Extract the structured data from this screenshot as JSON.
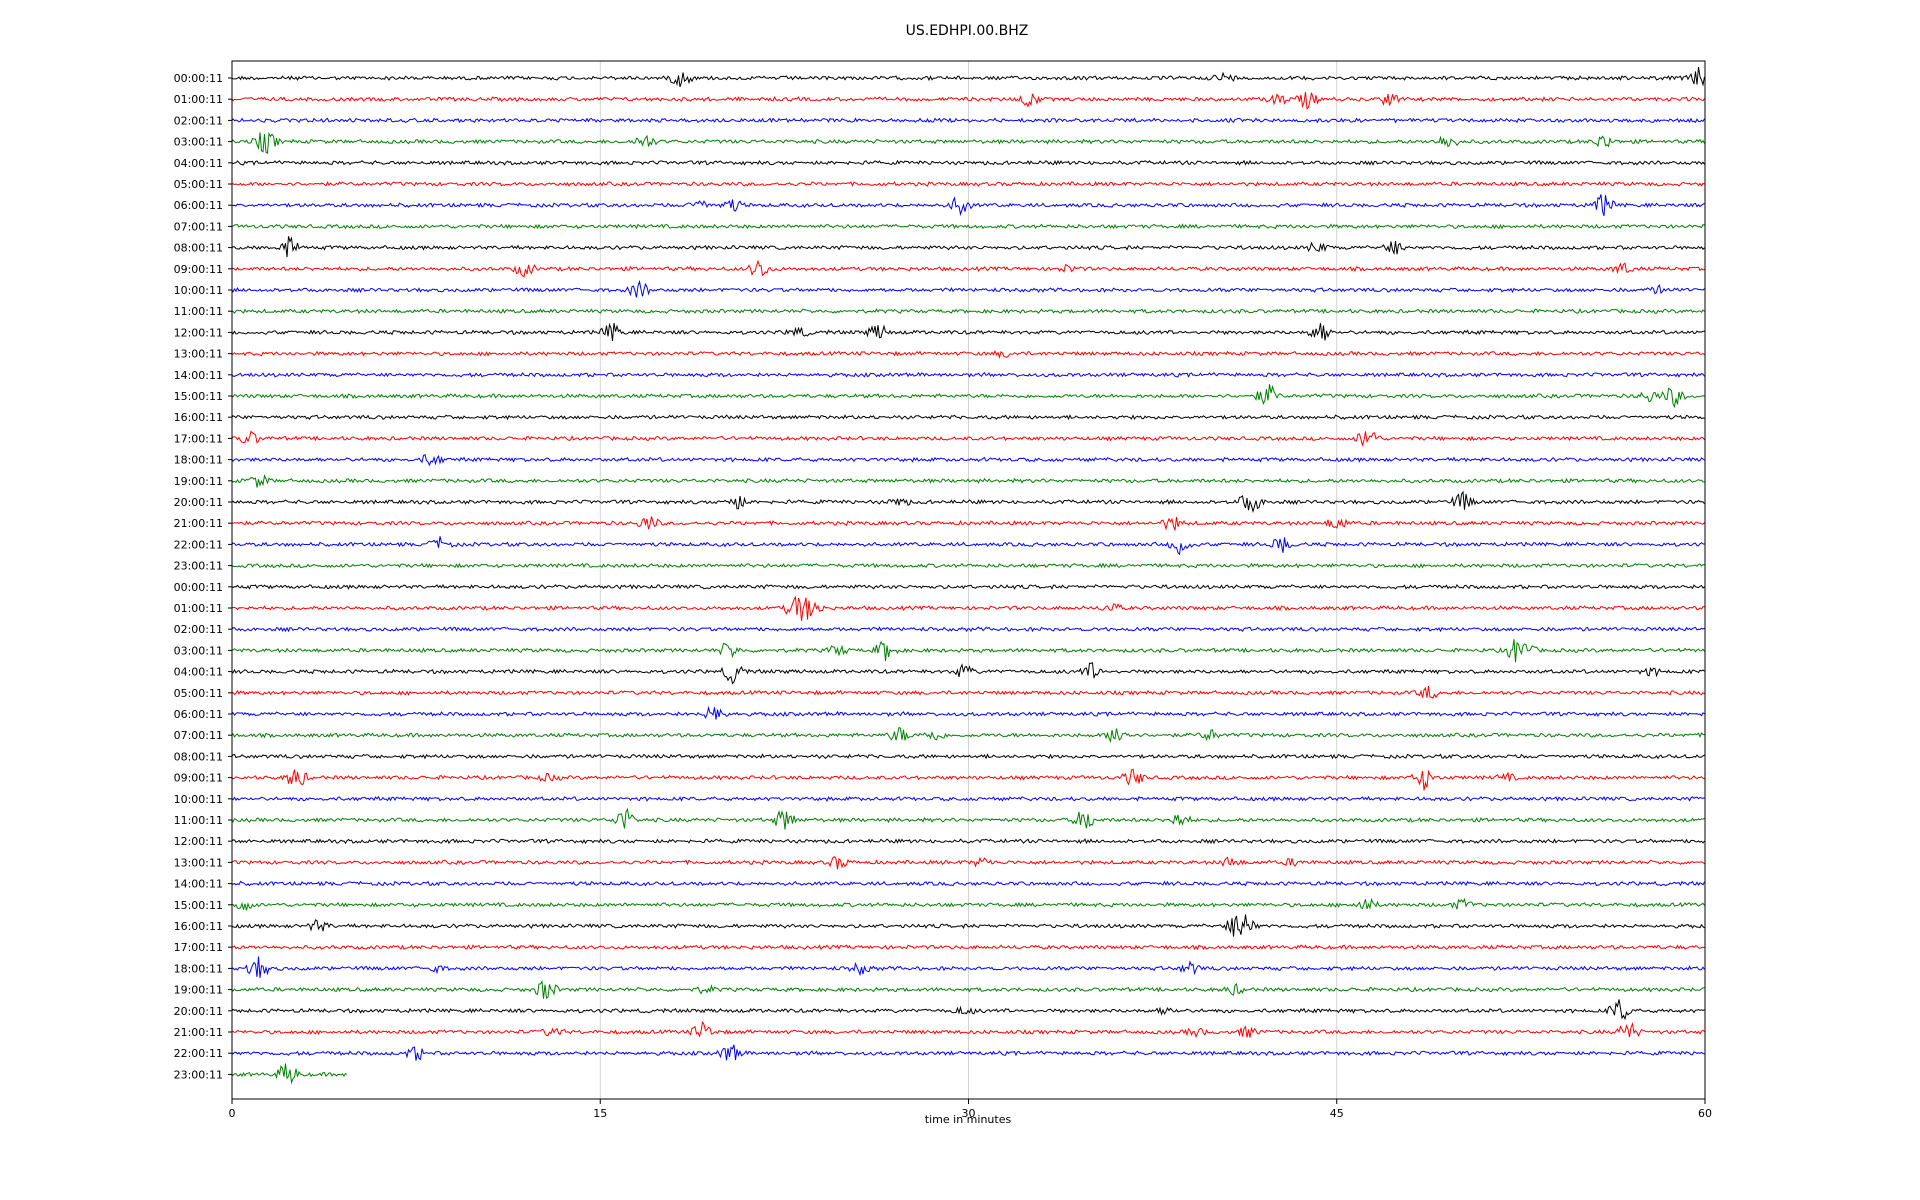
{
  "chart_data": {
    "type": "line",
    "title": "US.EDHPI.00.BHZ",
    "xlabel": "time in minutes",
    "ylabel": "",
    "xlim": [
      0,
      60
    ],
    "xticks": [
      0,
      15,
      30,
      45,
      60
    ],
    "xtick_labels": [
      "0",
      "15",
      "30",
      "45",
      "60"
    ],
    "grid": "vertical",
    "color_cycle": [
      "#000000",
      "#ff0000",
      "#0000ff",
      "#008000"
    ],
    "row_labels": [
      "00:00:11",
      "01:00:11",
      "02:00:11",
      "03:00:11",
      "04:00:11",
      "05:00:11",
      "06:00:11",
      "07:00:11",
      "08:00:11",
      "09:00:11",
      "10:00:11",
      "11:00:11",
      "12:00:11",
      "13:00:11",
      "14:00:11",
      "15:00:11",
      "16:00:11",
      "17:00:11",
      "18:00:11",
      "19:00:11",
      "20:00:11",
      "21:00:11",
      "22:00:11",
      "23:00:11",
      "00:00:11",
      "01:00:11",
      "02:00:11",
      "03:00:11",
      "04:00:11",
      "05:00:11",
      "06:00:11",
      "07:00:11",
      "08:00:11",
      "09:00:11",
      "10:00:11",
      "11:00:11",
      "12:00:11",
      "13:00:11",
      "14:00:11",
      "15:00:11",
      "16:00:11",
      "17:00:11",
      "18:00:11",
      "19:00:11",
      "20:00:11",
      "21:00:11",
      "22:00:11",
      "23:00:11"
    ],
    "trace_end_minutes": [
      60,
      60,
      60,
      60,
      60,
      60,
      60,
      60,
      60,
      60,
      60,
      60,
      60,
      60,
      60,
      60,
      60,
      60,
      60,
      60,
      60,
      60,
      60,
      60,
      60,
      60,
      60,
      60,
      60,
      60,
      60,
      60,
      60,
      60,
      60,
      60,
      60,
      60,
      60,
      60,
      60,
      60,
      60,
      60,
      60,
      60,
      60,
      4.7
    ]
  }
}
